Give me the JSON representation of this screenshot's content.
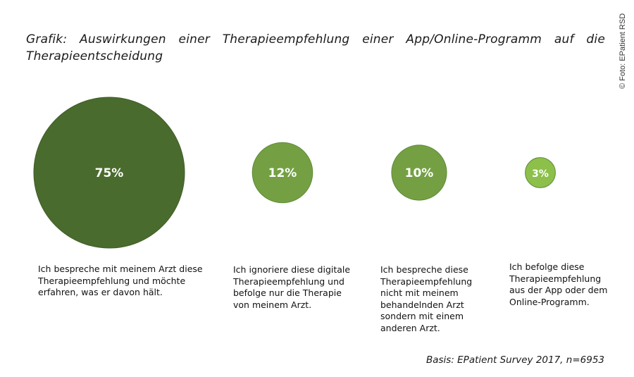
{
  "title_line1": "Grafik: Auswirkungen einer Therapieempfehlung einer App/Online-Programm auf die",
  "title_line2": "Therapieentscheidung",
  "photo_credit": "© Foto: EPatient RSD",
  "source": "Basis: EPatient Survey 2017, n=6953",
  "colors": {
    "dark_green": "#4a6b2e",
    "mid_green": "#74a043",
    "light_green": "#8cc04a",
    "outline": "#5e8a37"
  },
  "chart_data": {
    "type": "bubble",
    "title": "Auswirkungen einer Therapieempfehlung einer App/Online-Programm auf die Therapieentscheidung",
    "unit": "%",
    "items": [
      {
        "value": 75,
        "label": "75%",
        "description": "Ich bespreche mit meinem Arzt diese Therapieempfehlung und möchte erfahren, was er davon hält.",
        "color": "#4a6b2e"
      },
      {
        "value": 12,
        "label": "12%",
        "description": "Ich ignoriere diese digitale Therapieempfehlung und befolge nur die Therapie von meinem Arzt.",
        "color": "#74a043"
      },
      {
        "value": 10,
        "label": "10%",
        "description": "Ich bespreche diese Therapieempfehlung nicht mit meinem behandelnden Arzt sondern mit einem anderen Arzt.",
        "color": "#74a043"
      },
      {
        "value": 3,
        "label": "3%",
        "description": "Ich befolge diese Therapieempfehlung aus der App oder dem Online-Programm.",
        "color": "#8cc04a"
      }
    ]
  }
}
